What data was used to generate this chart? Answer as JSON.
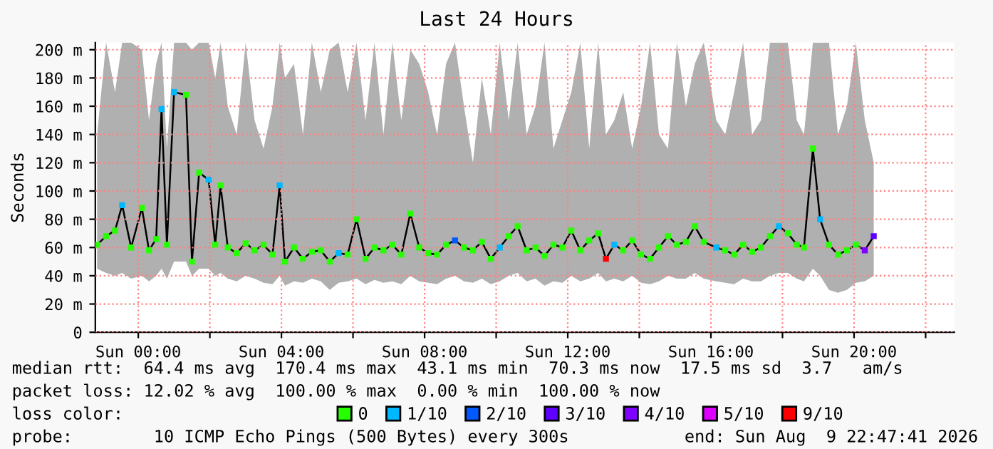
{
  "chart_data": {
    "type": "line",
    "title": "Last 24 Hours",
    "ylabel": "Seconds",
    "xlim": [
      "2026-08-08T22:48",
      "2026-08-09T22:48"
    ],
    "ylim": [
      0,
      205
    ],
    "xticks": [
      {
        "value": "2026-08-09T00:00",
        "label": "Sun 00:00"
      },
      {
        "value": "2026-08-09T02:00",
        "label": null
      },
      {
        "value": "2026-08-09T04:00",
        "label": "Sun 04:00"
      },
      {
        "value": "2026-08-09T06:00",
        "label": null
      },
      {
        "value": "2026-08-09T08:00",
        "label": "Sun 08:00"
      },
      {
        "value": "2026-08-09T10:00",
        "label": null
      },
      {
        "value": "2026-08-09T12:00",
        "label": "Sun 12:00"
      },
      {
        "value": "2026-08-09T14:00",
        "label": null
      },
      {
        "value": "2026-08-09T16:00",
        "label": "Sun 16:00"
      },
      {
        "value": "2026-08-09T18:00",
        "label": null
      },
      {
        "value": "2026-08-09T20:00",
        "label": "Sun 20:00"
      },
      {
        "value": "2026-08-09T22:00",
        "label": null
      }
    ],
    "yticks": [
      0,
      {
        "value": 20,
        "label": "20 m"
      },
      {
        "value": 40,
        "label": "40 m"
      },
      {
        "value": 60,
        "label": "60 m"
      },
      {
        "value": 80,
        "label": "80 m"
      },
      {
        "value": 100,
        "label": "100 m"
      },
      {
        "value": 120,
        "label": "120 m"
      },
      {
        "value": 140,
        "label": "140 m"
      },
      {
        "value": 160,
        "label": "160 m"
      },
      {
        "value": 180,
        "label": "180 m"
      },
      {
        "value": 200,
        "label": "200 m"
      }
    ],
    "grid": true,
    "legend": "bottom",
    "series": [
      {
        "color": "#000000",
        "x": [
          "2026-08-08T22:51",
          "2026-08-08T23:06",
          "2026-08-08T23:21",
          "2026-08-08T23:33",
          "2026-08-08T23:48",
          "2026-08-09T00:06",
          "2026-08-09T00:18",
          "2026-08-09T00:30",
          "2026-08-09T00:39",
          "2026-08-09T00:48",
          "2026-08-09T01:00",
          "2026-08-09T01:20",
          "2026-08-09T01:30",
          "2026-08-09T01:42",
          "2026-08-09T01:58",
          "2026-08-09T02:09",
          "2026-08-09T02:18",
          "2026-08-09T02:30",
          "2026-08-09T02:45",
          "2026-08-09T03:00",
          "2026-08-09T03:15",
          "2026-08-09T03:30",
          "2026-08-09T03:45",
          "2026-08-09T03:57",
          "2026-08-09T04:06",
          "2026-08-09T04:21",
          "2026-08-09T04:36",
          "2026-08-09T04:51",
          "2026-08-09T05:06",
          "2026-08-09T05:21",
          "2026-08-09T05:36",
          "2026-08-09T05:51",
          "2026-08-09T06:06",
          "2026-08-09T06:21",
          "2026-08-09T06:36",
          "2026-08-09T06:51",
          "2026-08-09T07:06",
          "2026-08-09T07:21",
          "2026-08-09T07:36",
          "2026-08-09T07:51",
          "2026-08-09T08:06",
          "2026-08-09T08:21",
          "2026-08-09T08:36",
          "2026-08-09T08:51",
          "2026-08-09T09:06",
          "2026-08-09T09:21",
          "2026-08-09T09:36",
          "2026-08-09T09:51",
          "2026-08-09T10:06",
          "2026-08-09T10:21",
          "2026-08-09T10:36",
          "2026-08-09T10:51",
          "2026-08-09T11:06",
          "2026-08-09T11:21",
          "2026-08-09T11:36",
          "2026-08-09T11:51",
          "2026-08-09T12:06",
          "2026-08-09T12:21",
          "2026-08-09T12:36",
          "2026-08-09T12:51",
          "2026-08-09T13:04",
          "2026-08-09T13:18",
          "2026-08-09T13:33",
          "2026-08-09T13:48",
          "2026-08-09T14:03",
          "2026-08-09T14:18",
          "2026-08-09T14:33",
          "2026-08-09T14:48",
          "2026-08-09T15:03",
          "2026-08-09T15:18",
          "2026-08-09T15:33",
          "2026-08-09T15:48",
          "2026-08-09T16:09",
          "2026-08-09T16:24",
          "2026-08-09T16:39",
          "2026-08-09T16:54",
          "2026-08-09T17:09",
          "2026-08-09T17:24",
          "2026-08-09T17:39",
          "2026-08-09T17:54",
          "2026-08-09T18:09",
          "2026-08-09T18:24",
          "2026-08-09T18:36",
          "2026-08-09T18:51",
          "2026-08-09T19:03",
          "2026-08-09T19:18",
          "2026-08-09T19:33",
          "2026-08-09T19:48",
          "2026-08-09T20:03",
          "2026-08-09T20:18",
          "2026-08-09T20:33"
        ],
        "values": [
          62,
          68,
          72,
          90,
          60,
          88,
          58,
          66,
          158,
          62,
          170,
          168,
          50,
          113,
          108,
          62,
          104,
          60,
          56,
          63,
          58,
          62,
          55,
          104,
          50,
          60,
          52,
          57,
          58,
          50,
          56,
          55,
          80,
          52,
          60,
          58,
          62,
          55,
          84,
          60,
          56,
          55,
          62,
          65,
          60,
          58,
          64,
          52,
          60,
          68,
          75,
          58,
          60,
          54,
          62,
          60,
          72,
          58,
          65,
          70,
          52,
          62,
          58,
          65,
          55,
          52,
          60,
          68,
          62,
          64,
          75,
          64,
          60,
          58,
          55,
          62,
          57,
          60,
          68,
          75,
          70,
          62,
          60,
          130,
          80,
          62,
          55,
          58,
          62,
          58,
          68
        ],
        "lower": [
          45,
          42,
          40,
          42,
          38,
          40,
          36,
          40,
          45,
          38,
          50,
          50,
          40,
          45,
          45,
          40,
          42,
          38,
          36,
          40,
          38,
          35,
          34,
          40,
          33,
          36,
          35,
          38,
          36,
          30,
          35,
          36,
          38,
          34,
          37,
          35,
          36,
          34,
          40,
          36,
          35,
          34,
          38,
          40,
          36,
          35,
          38,
          34,
          36,
          40,
          42,
          36,
          38,
          33,
          36,
          35,
          40,
          36,
          38,
          42,
          36,
          38,
          36,
          40,
          35,
          34,
          36,
          40,
          38,
          38,
          42,
          38,
          36,
          35,
          34,
          38,
          36,
          36,
          40,
          42,
          42,
          38,
          36,
          45,
          40,
          30,
          28,
          30,
          35,
          36,
          40
        ],
        "upper": [
          140,
          205,
          170,
          205,
          205,
          200,
          150,
          190,
          205,
          130,
          205,
          205,
          200,
          205,
          205,
          180,
          205,
          160,
          140,
          205,
          150,
          130,
          160,
          205,
          180,
          190,
          140,
          205,
          170,
          200,
          205,
          170,
          205,
          150,
          205,
          140,
          205,
          150,
          200,
          190,
          170,
          140,
          190,
          205,
          160,
          120,
          180,
          140,
          205,
          150,
          205,
          140,
          160,
          205,
          130,
          150,
          170,
          205,
          130,
          205,
          140,
          150,
          170,
          130,
          160,
          205,
          140,
          130,
          205,
          160,
          190,
          205,
          150,
          140,
          170,
          205,
          140,
          150,
          205,
          205,
          205,
          150,
          140,
          205,
          205,
          205,
          140,
          160,
          205,
          150,
          120
        ]
      },
      {
        "type": "scatter",
        "marker": "square",
        "name": "0",
        "color": "#26ff00",
        "x": [
          "2026-08-08T22:51",
          "2026-08-08T23:06",
          "2026-08-08T23:21",
          "2026-08-08T23:48",
          "2026-08-09T00:06",
          "2026-08-09T00:18",
          "2026-08-09T00:30",
          "2026-08-09T00:48",
          "2026-08-09T01:20",
          "2026-08-09T01:30",
          "2026-08-09T01:42",
          "2026-08-09T02:09",
          "2026-08-09T02:18",
          "2026-08-09T02:30",
          "2026-08-09T02:45",
          "2026-08-09T03:00",
          "2026-08-09T03:15",
          "2026-08-09T03:30",
          "2026-08-09T03:45",
          "2026-08-09T04:06",
          "2026-08-09T04:21",
          "2026-08-09T04:36",
          "2026-08-09T04:51",
          "2026-08-09T05:06",
          "2026-08-09T05:21",
          "2026-08-09T05:51",
          "2026-08-09T06:06",
          "2026-08-09T06:21",
          "2026-08-09T06:36",
          "2026-08-09T06:51",
          "2026-08-09T07:06",
          "2026-08-09T07:21",
          "2026-08-09T07:36",
          "2026-08-09T07:51",
          "2026-08-09T08:06",
          "2026-08-09T08:21",
          "2026-08-09T08:36",
          "2026-08-09T09:06",
          "2026-08-09T09:21",
          "2026-08-09T09:36",
          "2026-08-09T09:51",
          "2026-08-09T10:21",
          "2026-08-09T10:36",
          "2026-08-09T10:51",
          "2026-08-09T11:06",
          "2026-08-09T11:21",
          "2026-08-09T11:36",
          "2026-08-09T11:51",
          "2026-08-09T12:06",
          "2026-08-09T12:21",
          "2026-08-09T12:36",
          "2026-08-09T12:51",
          "2026-08-09T13:33",
          "2026-08-09T13:48",
          "2026-08-09T14:03",
          "2026-08-09T14:18",
          "2026-08-09T14:33",
          "2026-08-09T14:48",
          "2026-08-09T15:03",
          "2026-08-09T15:18",
          "2026-08-09T15:33",
          "2026-08-09T15:48",
          "2026-08-09T16:24",
          "2026-08-09T16:39",
          "2026-08-09T16:54",
          "2026-08-09T17:09",
          "2026-08-09T17:24",
          "2026-08-09T17:39",
          "2026-08-09T18:09",
          "2026-08-09T18:24",
          "2026-08-09T18:36",
          "2026-08-09T18:51",
          "2026-08-09T19:18",
          "2026-08-09T19:33",
          "2026-08-09T19:48",
          "2026-08-09T20:03"
        ],
        "values": [
          62,
          68,
          72,
          60,
          88,
          58,
          66,
          62,
          168,
          50,
          113,
          62,
          104,
          60,
          56,
          63,
          58,
          62,
          55,
          50,
          60,
          52,
          57,
          58,
          50,
          55,
          80,
          52,
          60,
          58,
          62,
          55,
          84,
          60,
          56,
          55,
          62,
          60,
          58,
          64,
          52,
          68,
          75,
          58,
          60,
          54,
          62,
          60,
          72,
          58,
          65,
          70,
          58,
          65,
          55,
          52,
          60,
          68,
          62,
          64,
          75,
          64,
          58,
          55,
          62,
          57,
          60,
          68,
          70,
          62,
          60,
          130,
          62,
          55,
          58,
          62
        ]
      },
      {
        "type": "scatter",
        "marker": "square",
        "name": "1/10",
        "color": "#00b8ff",
        "x": [
          "2026-08-08T23:33",
          "2026-08-09T00:39",
          "2026-08-09T01:00",
          "2026-08-09T01:58",
          "2026-08-09T03:57",
          "2026-08-09T05:36",
          "2026-08-09T10:06",
          "2026-08-09T13:18",
          "2026-08-09T16:09",
          "2026-08-09T17:54",
          "2026-08-09T19:03"
        ],
        "values": [
          90,
          158,
          170,
          108,
          104,
          56,
          60,
          62,
          60,
          75,
          80
        ]
      },
      {
        "type": "scatter",
        "marker": "square",
        "name": "2/10",
        "color": "#0059ff",
        "x": [
          "2026-08-09T08:51"
        ],
        "values": [
          65
        ]
      },
      {
        "type": "scatter",
        "marker": "square",
        "name": "3/10",
        "color": "#5e00ff",
        "x": [
          "2026-08-09T20:33"
        ],
        "values": [
          68
        ]
      },
      {
        "type": "scatter",
        "marker": "square",
        "name": "4/10",
        "color": "#7e00ff",
        "x": [
          "2026-08-09T20:18"
        ],
        "values": [
          58
        ]
      },
      {
        "type": "scatter",
        "name": "5/10",
        "color": "#dd00ff"
      },
      {
        "type": "scatter",
        "marker": "square",
        "name": "9/10",
        "color": "#ff0000",
        "x": [
          "2026-08-09T13:04"
        ],
        "values": [
          52
        ]
      }
    ],
    "annotations": [
      "median rtt:  64.4 ms avg  170.4 ms max  43.1 ms min  70.3 ms now  17.5 ms sd  3.7   am/s",
      "packet loss: 12.02 % avg  100.00 % max  0.00 % min  100.00 % now",
      "loss color:",
      "probe:        10 ICMP Echo Pings (500 Bytes) every 300s",
      "end: Sun Aug  9 22:47:41 2026"
    ]
  }
}
